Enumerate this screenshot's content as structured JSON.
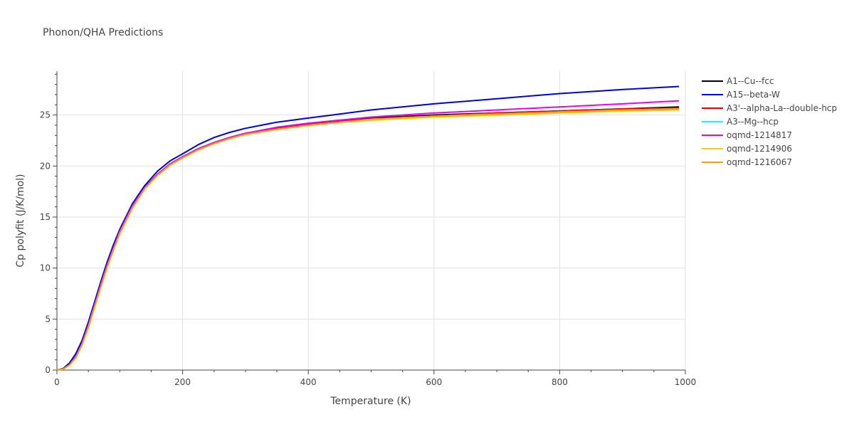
{
  "chart_data": {
    "type": "line",
    "title": "Phonon/QHA Predictions",
    "xlabel": "Temperature (K)",
    "ylabel": "Cp polyfit (J/K/mol)",
    "xlim": [
      0,
      1000
    ],
    "ylim": [
      0,
      29.3
    ],
    "xticks": [
      0,
      200,
      400,
      600,
      800,
      1000
    ],
    "yticks": [
      0,
      5,
      10,
      15,
      20,
      25
    ],
    "grid": true,
    "legend_position": "right",
    "x": [
      0,
      10,
      20,
      30,
      40,
      50,
      60,
      70,
      80,
      90,
      100,
      120,
      140,
      160,
      180,
      200,
      225,
      250,
      275,
      300,
      350,
      400,
      450,
      500,
      600,
      700,
      800,
      900,
      990
    ],
    "series": [
      {
        "name": "A1--Cu--fcc",
        "color": "#000000",
        "values": [
          0,
          0.1,
          0.5,
          1.3,
          2.6,
          4.4,
          6.4,
          8.4,
          10.3,
          12.0,
          13.6,
          16.1,
          17.9,
          19.2,
          20.2,
          20.9,
          21.7,
          22.3,
          22.8,
          23.2,
          23.7,
          24.1,
          24.4,
          24.7,
          25.0,
          25.2,
          25.4,
          25.6,
          25.8
        ]
      },
      {
        "name": "A15--beta-W",
        "color": "#0000dd",
        "values": [
          0,
          0.15,
          0.7,
          1.6,
          2.9,
          4.7,
          6.7,
          8.7,
          10.6,
          12.3,
          13.8,
          16.3,
          18.1,
          19.5,
          20.5,
          21.2,
          22.1,
          22.8,
          23.3,
          23.7,
          24.3,
          24.7,
          25.1,
          25.5,
          26.1,
          26.6,
          27.1,
          27.5,
          27.8
        ]
      },
      {
        "name": "A3'--alpha-La--double-hcp",
        "color": "#ee0000",
        "values": [
          0,
          0.1,
          0.5,
          1.3,
          2.6,
          4.4,
          6.4,
          8.4,
          10.3,
          12.0,
          13.6,
          16.1,
          17.9,
          19.2,
          20.2,
          20.9,
          21.7,
          22.3,
          22.8,
          23.2,
          23.7,
          24.1,
          24.4,
          24.6,
          24.9,
          25.2,
          25.4,
          25.6,
          25.7
        ]
      },
      {
        "name": "A3--Mg--hcp",
        "color": "#00ffff",
        "values": [
          0,
          0.1,
          0.5,
          1.3,
          2.5,
          4.3,
          6.3,
          8.3,
          10.2,
          11.9,
          13.5,
          16.0,
          17.8,
          19.1,
          20.1,
          20.8,
          21.6,
          22.2,
          22.7,
          23.1,
          23.6,
          24.0,
          24.3,
          24.5,
          24.9,
          25.1,
          25.3,
          25.5,
          25.6
        ]
      },
      {
        "name": "oqmd-1214817",
        "color": "#ee00ee",
        "values": [
          0,
          0.1,
          0.5,
          1.3,
          2.6,
          4.4,
          6.4,
          8.4,
          10.3,
          12.0,
          13.6,
          16.1,
          17.9,
          19.2,
          20.2,
          20.9,
          21.7,
          22.3,
          22.8,
          23.2,
          23.8,
          24.2,
          24.5,
          24.8,
          25.2,
          25.5,
          25.8,
          26.1,
          26.4
        ]
      },
      {
        "name": "oqmd-1214906",
        "color": "#f5c518",
        "values": [
          0,
          0.1,
          0.5,
          1.2,
          2.5,
          4.2,
          6.2,
          8.2,
          10.1,
          11.8,
          13.4,
          15.9,
          17.8,
          19.1,
          20.1,
          20.8,
          21.6,
          22.2,
          22.7,
          23.1,
          23.6,
          24.0,
          24.3,
          24.5,
          24.8,
          25.0,
          25.2,
          25.4,
          25.5
        ]
      },
      {
        "name": "oqmd-1216067",
        "color": "#f5a300",
        "values": [
          0,
          0.1,
          0.5,
          1.2,
          2.5,
          4.2,
          6.2,
          8.2,
          10.1,
          11.8,
          13.4,
          15.9,
          17.8,
          19.1,
          20.1,
          20.8,
          21.6,
          22.2,
          22.7,
          23.1,
          23.6,
          24.0,
          24.3,
          24.6,
          24.9,
          25.1,
          25.3,
          25.5,
          25.6
        ]
      }
    ]
  }
}
